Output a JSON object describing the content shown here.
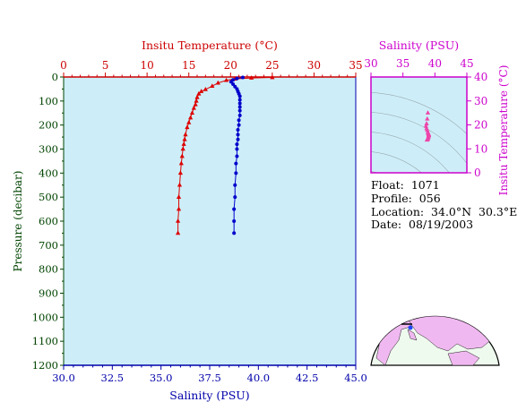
{
  "chart_data": [
    {
      "type": "line",
      "title": "",
      "top_axis_label": "Insitu Temperature (°C)",
      "bottom_axis_label": "Salinity (PSU)",
      "ylabel": "Pressure (decibar)",
      "temp_range": [
        0,
        35
      ],
      "sal_range": [
        30.0,
        45.0
      ],
      "ylim": [
        1200,
        0
      ],
      "temp_ticks": [
        "0",
        "5",
        "10",
        "15",
        "20",
        "25",
        "30",
        "35"
      ],
      "sal_ticks": [
        "30.0",
        "32.5",
        "35.0",
        "37.5",
        "40.0",
        "42.5",
        "45.0"
      ],
      "pressure_ticks": [
        "0",
        "100",
        "200",
        "300",
        "400",
        "500",
        "600",
        "700",
        "800",
        "900",
        "1000",
        "1100",
        "1200"
      ],
      "series": [
        {
          "axis": "temperature",
          "color": "#dd0000",
          "marker": "triangle",
          "points": [
            [
              25.0,
              2
            ],
            [
              22.5,
              4
            ],
            [
              20.5,
              8
            ],
            [
              19.5,
              14
            ],
            [
              18.5,
              25
            ],
            [
              17.8,
              38
            ],
            [
              17.0,
              52
            ],
            [
              16.5,
              60
            ],
            [
              16.2,
              70
            ],
            [
              16.0,
              85
            ],
            [
              15.9,
              100
            ],
            [
              15.8,
              115
            ],
            [
              15.6,
              130
            ],
            [
              15.4,
              150
            ],
            [
              15.2,
              170
            ],
            [
              15.0,
              190
            ],
            [
              14.8,
              210
            ],
            [
              14.6,
              240
            ],
            [
              14.5,
              260
            ],
            [
              14.4,
              280
            ],
            [
              14.3,
              300
            ],
            [
              14.2,
              330
            ],
            [
              14.1,
              360
            ],
            [
              14.0,
              400
            ],
            [
              13.9,
              450
            ],
            [
              13.8,
              500
            ],
            [
              13.8,
              550
            ],
            [
              13.7,
              600
            ],
            [
              13.7,
              650
            ]
          ]
        },
        {
          "axis": "salinity",
          "color": "#0000cc",
          "marker": "circle",
          "points": [
            [
              39.2,
              2
            ],
            [
              38.9,
              6
            ],
            [
              38.7,
              12
            ],
            [
              38.6,
              20
            ],
            [
              38.7,
              30
            ],
            [
              38.8,
              40
            ],
            [
              38.9,
              50
            ],
            [
              38.95,
              60
            ],
            [
              39.0,
              70
            ],
            [
              39.05,
              80
            ],
            [
              39.05,
              95
            ],
            [
              39.05,
              110
            ],
            [
              39.05,
              125
            ],
            [
              39.05,
              140
            ],
            [
              39.05,
              160
            ],
            [
              39.0,
              180
            ],
            [
              39.0,
              200
            ],
            [
              38.95,
              220
            ],
            [
              38.95,
              240
            ],
            [
              38.95,
              260
            ],
            [
              38.9,
              280
            ],
            [
              38.9,
              300
            ],
            [
              38.9,
              330
            ],
            [
              38.85,
              360
            ],
            [
              38.85,
              400
            ],
            [
              38.8,
              450
            ],
            [
              38.8,
              500
            ],
            [
              38.75,
              550
            ],
            [
              38.75,
              600
            ],
            [
              38.75,
              650
            ]
          ]
        }
      ]
    },
    {
      "type": "scatter",
      "xlabel": "Salinity (PSU)",
      "ylabel": "Insitu Temperature (°C)",
      "xlim": [
        30,
        45
      ],
      "ylim": [
        0,
        40
      ],
      "x_ticks": [
        "30",
        "35",
        "40",
        "45"
      ],
      "y_ticks": [
        "0",
        "10",
        "20",
        "30",
        "40"
      ],
      "color": "#ee44aa",
      "points": [
        [
          38.9,
          25.0
        ],
        [
          38.8,
          22.5
        ],
        [
          38.7,
          20.5
        ],
        [
          38.6,
          19.5
        ],
        [
          38.7,
          18.5
        ],
        [
          38.8,
          17.8
        ],
        [
          38.9,
          17.0
        ],
        [
          38.95,
          16.5
        ],
        [
          39.0,
          16.2
        ],
        [
          39.05,
          16.0
        ],
        [
          39.05,
          15.8
        ],
        [
          39.05,
          15.6
        ],
        [
          39.0,
          15.4
        ],
        [
          39.0,
          15.0
        ],
        [
          38.95,
          14.6
        ],
        [
          38.9,
          14.3
        ],
        [
          38.85,
          14.0
        ],
        [
          38.8,
          13.8
        ],
        [
          38.75,
          13.7
        ]
      ]
    }
  ],
  "info": {
    "float": "Float:  1071",
    "profile": "Profile:  056",
    "location": "Location:  34.0°N  30.3°E",
    "date": "Date:  08/19/2003"
  },
  "colors": {
    "plot_bg": "#cdeef8",
    "temp_axis": "#cc0000",
    "sal_axis": "#0000aa",
    "pressure_axis": "#004400",
    "ts_axis": "#cc00cc",
    "map_land": "#f0b8f0",
    "map_ocean": "#eefaee"
  }
}
